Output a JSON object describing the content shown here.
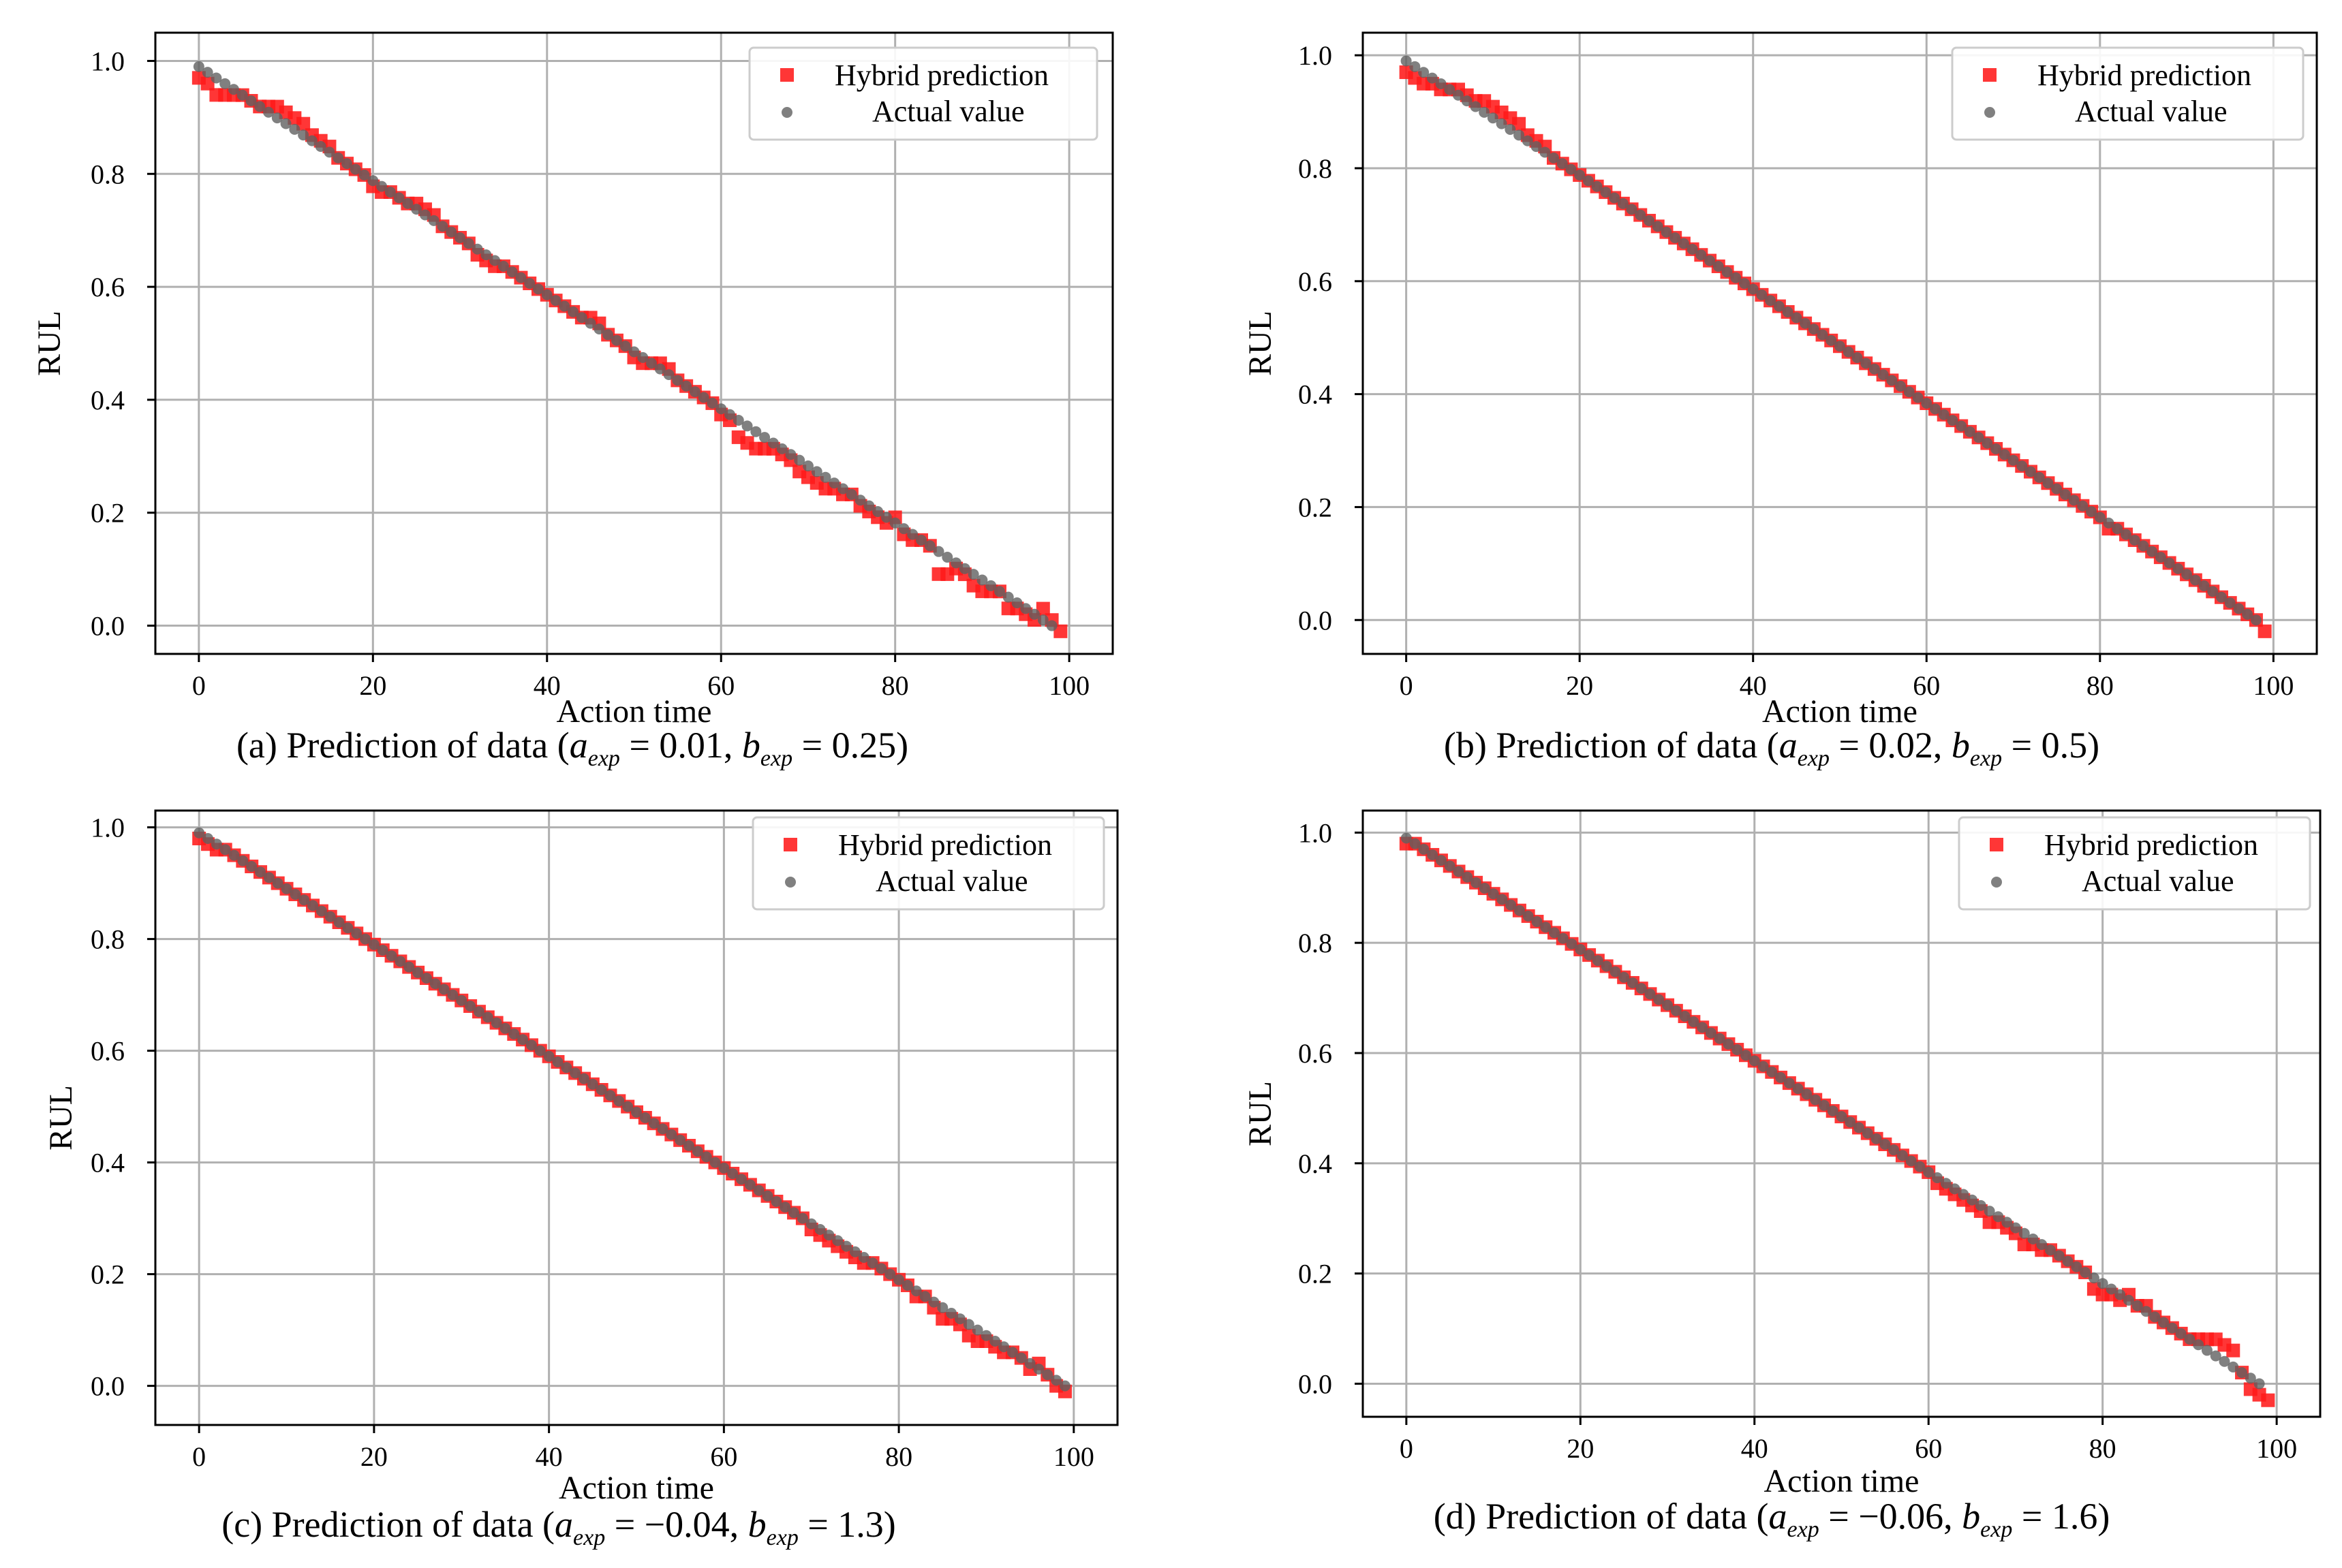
{
  "figure": {
    "panels": [
      {
        "id": "a",
        "caption": {
          "prefix": "(a) Prediction of data",
          "a_value": "0.01",
          "b_value": "0.25"
        },
        "prediction_offsets": [
          -0.02,
          -0.02,
          -0.03,
          -0.02,
          -0.01,
          0.0,
          0.0,
          0.0,
          0.01,
          0.02,
          0.02,
          0.02,
          0.02,
          0.01,
          0.01,
          0.01,
          0.0,
          0.0,
          0.0,
          0.0,
          -0.01,
          -0.01,
          0.0,
          0.0,
          0.0,
          0.01,
          0.01,
          0.01,
          0.0,
          0.0,
          0.0,
          0.0,
          -0.01,
          -0.01,
          -0.01,
          0.0,
          0.0,
          0.0,
          0.0,
          0.0,
          0.0,
          0.0,
          0.0,
          0.0,
          0.0,
          0.01,
          0.01,
          0.0,
          0.0,
          0.0,
          -0.01,
          -0.01,
          0.0,
          0.01,
          0.01,
          0.0,
          0.0,
          0.0,
          0.0,
          0.0,
          -0.01,
          -0.01,
          -0.03,
          -0.03,
          -0.03,
          -0.02,
          -0.01,
          -0.01,
          -0.01,
          -0.02,
          -0.02,
          -0.02,
          -0.02,
          -0.01,
          -0.01,
          0.0,
          -0.01,
          -0.01,
          -0.01,
          -0.01,
          0.01,
          -0.01,
          -0.01,
          0.0,
          0.0,
          -0.04,
          -0.03,
          -0.01,
          -0.01,
          -0.02,
          -0.02,
          -0.01,
          0.0,
          -0.02,
          -0.01,
          -0.01,
          -0.01,
          0.02,
          0.01,
          0.0
        ]
      },
      {
        "id": "b",
        "caption": {
          "prefix": "(b) Prediction of data",
          "a_value": "0.02",
          "b_value": "0.5"
        },
        "prediction_offsets": [
          -0.02,
          -0.02,
          -0.02,
          -0.01,
          -0.01,
          0.0,
          0.01,
          0.01,
          0.01,
          0.02,
          0.02,
          0.02,
          0.02,
          0.02,
          0.01,
          0.01,
          0.01,
          0.0,
          0.0,
          0.0,
          0.0,
          0.0,
          0.0,
          0.0,
          0.0,
          0.0,
          0.0,
          0.0,
          0.0,
          0.0,
          0.0,
          0.0,
          0.0,
          0.0,
          0.0,
          0.0,
          0.0,
          0.0,
          0.0,
          0.0,
          0.0,
          0.0,
          0.0,
          0.0,
          0.0,
          0.0,
          0.0,
          0.0,
          0.0,
          0.0,
          0.0,
          0.0,
          0.0,
          0.0,
          0.0,
          0.0,
          0.0,
          0.0,
          0.0,
          0.0,
          0.0,
          0.0,
          0.0,
          0.0,
          0.0,
          0.0,
          0.0,
          0.0,
          0.0,
          0.0,
          0.0,
          0.0,
          0.0,
          0.0,
          0.0,
          0.0,
          0.0,
          0.0,
          0.0,
          0.0,
          0.0,
          -0.01,
          0.0,
          0.0,
          0.0,
          0.0,
          0.0,
          0.0,
          0.0,
          0.0,
          0.0,
          0.0,
          0.0,
          0.0,
          0.0,
          0.0,
          0.0,
          0.0,
          0.0,
          -0.01
        ]
      },
      {
        "id": "c",
        "caption": {
          "prefix": "(c) Prediction of data",
          "a_value": "−0.04",
          "b_value": "1.3"
        },
        "prediction_offsets": [
          -0.01,
          -0.01,
          -0.01,
          0.0,
          0.0,
          0.0,
          0.0,
          0.0,
          0.0,
          0.0,
          0.0,
          0.0,
          0.0,
          0.0,
          0.0,
          0.0,
          0.0,
          0.0,
          0.0,
          0.0,
          0.0,
          0.0,
          0.0,
          0.0,
          0.0,
          0.0,
          0.0,
          0.0,
          0.0,
          0.0,
          0.0,
          0.0,
          0.0,
          0.0,
          0.0,
          0.0,
          0.0,
          0.0,
          0.0,
          0.0,
          0.0,
          0.0,
          0.0,
          0.0,
          0.0,
          0.0,
          0.0,
          0.0,
          0.0,
          0.0,
          0.0,
          0.0,
          0.0,
          0.0,
          0.0,
          0.0,
          0.0,
          0.0,
          0.0,
          0.0,
          0.0,
          0.0,
          0.0,
          0.0,
          0.0,
          0.0,
          0.0,
          0.0,
          0.0,
          0.0,
          -0.01,
          -0.01,
          -0.01,
          -0.01,
          -0.01,
          -0.01,
          -0.01,
          0.0,
          0.0,
          0.0,
          0.0,
          0.0,
          -0.01,
          0.0,
          -0.01,
          -0.02,
          -0.01,
          -0.01,
          -0.02,
          -0.02,
          -0.01,
          -0.01,
          -0.01,
          0.0,
          0.0,
          -0.01,
          0.01,
          0.0,
          -0.01,
          -0.01
        ]
      },
      {
        "id": "d",
        "caption": {
          "prefix": "(d) Prediction of data",
          "a_value": "−0.06",
          "b_value": "1.6"
        },
        "prediction_offsets": [
          -0.01,
          0.0,
          0.0,
          0.0,
          0.0,
          0.0,
          0.0,
          0.0,
          0.0,
          0.0,
          0.0,
          0.0,
          0.0,
          0.0,
          0.0,
          0.0,
          0.0,
          0.0,
          0.0,
          0.0,
          0.0,
          0.0,
          0.0,
          0.0,
          0.0,
          0.0,
          0.0,
          0.0,
          0.0,
          0.0,
          0.0,
          0.0,
          0.0,
          0.0,
          0.0,
          0.0,
          0.0,
          0.0,
          0.0,
          0.0,
          0.0,
          0.0,
          0.0,
          0.0,
          0.0,
          0.0,
          0.0,
          0.0,
          0.0,
          0.0,
          0.0,
          0.0,
          0.0,
          0.0,
          0.0,
          0.0,
          0.0,
          0.0,
          0.0,
          0.0,
          0.0,
          -0.01,
          -0.01,
          -0.01,
          -0.01,
          -0.01,
          -0.01,
          -0.02,
          -0.01,
          -0.01,
          -0.01,
          -0.02,
          -0.01,
          -0.01,
          0.0,
          0.0,
          0.0,
          0.0,
          0.0,
          -0.02,
          -0.02,
          -0.01,
          -0.01,
          0.01,
          0.0,
          0.01,
          0.0,
          0.0,
          0.0,
          0.0,
          0.0,
          0.01,
          0.02,
          0.03,
          0.03,
          0.03,
          0.0,
          -0.02,
          -0.02,
          -0.02
        ]
      }
    ],
    "caption_a_symbol": "a",
    "caption_b_symbol": "b",
    "caption_subscript": "exp"
  },
  "chart_data": [
    {
      "type": "scatter",
      "title": "(a) Prediction of data (a_exp = 0.01, b_exp = 0.25)",
      "xlabel": "Action time",
      "ylabel": "RUL",
      "xlim": [
        -5,
        105
      ],
      "ylim": [
        -0.05,
        1.05
      ],
      "xticks": [
        "0",
        "20",
        "40",
        "60",
        "80",
        "100"
      ],
      "yticks": [
        "0.0",
        "0.2",
        "0.4",
        "0.6",
        "0.8",
        "1.0"
      ],
      "legend": {
        "position": "top-right",
        "entries": [
          "Hybrid prediction",
          "Actual value"
        ]
      },
      "series": [
        {
          "name": "Hybrid prediction",
          "marker": "square",
          "color": "#ff1a1a",
          "x_range": [
            0,
            99
          ],
          "description": "actual value plus per-point offsets in figure.panels[0].prediction_offsets"
        },
        {
          "name": "Actual value",
          "marker": "circle",
          "color": "#606060",
          "x_range": [
            0,
            98
          ],
          "y_range": [
            0.99,
            0.0
          ]
        }
      ]
    },
    {
      "type": "scatter",
      "title": "(b) Prediction of data (a_exp = 0.02, b_exp = 0.5)",
      "xlabel": "Action time",
      "ylabel": "RUL",
      "xlim": [
        -5,
        105
      ],
      "ylim": [
        -0.06,
        1.04
      ],
      "xticks": [
        "0",
        "20",
        "40",
        "60",
        "80",
        "100"
      ],
      "yticks": [
        "0.0",
        "0.2",
        "0.4",
        "0.6",
        "0.8",
        "1.0"
      ],
      "legend": {
        "position": "top-right",
        "entries": [
          "Hybrid prediction",
          "Actual value"
        ]
      },
      "series": [
        {
          "name": "Hybrid prediction",
          "marker": "square",
          "color": "#ff1a1a",
          "x_range": [
            0,
            99
          ],
          "description": "actual value plus per-point offsets in figure.panels[1].prediction_offsets"
        },
        {
          "name": "Actual value",
          "marker": "circle",
          "color": "#606060",
          "x_range": [
            0,
            98
          ],
          "y_range": [
            0.99,
            0.0
          ]
        }
      ]
    },
    {
      "type": "scatter",
      "title": "(c) Prediction of data (a_exp = −0.04, b_exp = 1.3)",
      "xlabel": "Action time",
      "ylabel": "RUL",
      "xlim": [
        -5,
        105
      ],
      "ylim": [
        -0.07,
        1.03
      ],
      "xticks": [
        "0",
        "20",
        "40",
        "60",
        "80",
        "100"
      ],
      "yticks": [
        "0.0",
        "0.2",
        "0.4",
        "0.6",
        "0.8",
        "1.0"
      ],
      "legend": {
        "position": "top-right",
        "entries": [
          "Hybrid prediction",
          "Actual value"
        ]
      },
      "series": [
        {
          "name": "Hybrid prediction",
          "marker": "square",
          "color": "#ff1a1a",
          "x_range": [
            0,
            99
          ],
          "description": "actual value plus per-point offsets in figure.panels[2].prediction_offsets"
        },
        {
          "name": "Actual value",
          "marker": "circle",
          "color": "#606060",
          "x_range": [
            0,
            99
          ],
          "y_range": [
            0.99,
            0.0
          ]
        }
      ]
    },
    {
      "type": "scatter",
      "title": "(d) Prediction of data (a_exp = −0.06, b_exp = 1.6)",
      "xlabel": "Action time",
      "ylabel": "RUL",
      "xlim": [
        -5,
        105
      ],
      "ylim": [
        -0.06,
        1.04
      ],
      "xticks": [
        "0",
        "20",
        "40",
        "60",
        "80",
        "100"
      ],
      "yticks": [
        "0.0",
        "0.2",
        "0.4",
        "0.6",
        "0.8",
        "1.0"
      ],
      "legend": {
        "position": "top-right",
        "entries": [
          "Hybrid prediction",
          "Actual value"
        ]
      },
      "series": [
        {
          "name": "Hybrid prediction",
          "marker": "square",
          "color": "#ff1a1a",
          "x_range": [
            0,
            99
          ],
          "description": "actual value plus per-point offsets in figure.panels[3].prediction_offsets"
        },
        {
          "name": "Actual value",
          "marker": "circle",
          "color": "#606060",
          "x_range": [
            0,
            98
          ],
          "y_range": [
            0.99,
            0.0
          ]
        }
      ]
    }
  ]
}
